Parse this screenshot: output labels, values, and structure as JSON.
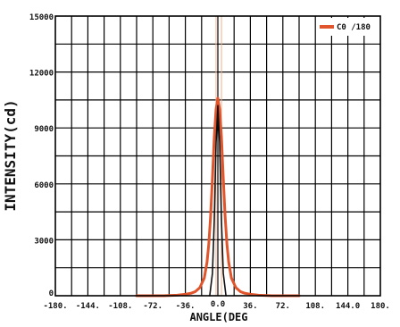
{
  "chart_data": {
    "type": "line",
    "xlabel": "ANGLE(DEG",
    "ylabel": "INTENSITY(cd)",
    "xlim": [
      -180,
      180
    ],
    "ylim": [
      0,
      15000
    ],
    "x_ticks": [
      {
        "value": -180,
        "label": "-180."
      },
      {
        "value": -144,
        "label": "-144."
      },
      {
        "value": -108,
        "label": "-108."
      },
      {
        "value": -72,
        "label": "-72."
      },
      {
        "value": -36,
        "label": "-36."
      },
      {
        "value": 0,
        "label": "0.0"
      },
      {
        "value": 36,
        "label": "36."
      },
      {
        "value": 72,
        "label": "72."
      },
      {
        "value": 108,
        "label": "108."
      },
      {
        "value": 144,
        "label": "144.0"
      },
      {
        "value": 180,
        "label": "180."
      }
    ],
    "y_ticks": [
      {
        "value": 0,
        "label": "0"
      },
      {
        "value": 3000,
        "label": "3000"
      },
      {
        "value": 6000,
        "label": "6000"
      },
      {
        "value": 9000,
        "label": "9000"
      },
      {
        "value": 12000,
        "label": "12000"
      },
      {
        "value": 15000,
        "label": "15000"
      }
    ],
    "grid": true,
    "legend_position": "top-right",
    "series": [
      {
        "name": "C0 /180",
        "color": "#e0552b",
        "x": [
          -90,
          -60,
          -45,
          -36,
          -30,
          -25,
          -20,
          -15,
          -12,
          -10,
          -8,
          -6,
          -4,
          -2,
          0,
          2,
          4,
          6,
          8,
          10,
          12,
          15,
          20,
          25,
          30,
          36,
          45,
          60,
          90
        ],
        "y": [
          0,
          0,
          30,
          80,
          130,
          220,
          430,
          950,
          1800,
          2800,
          4300,
          6300,
          8500,
          10000,
          10600,
          10000,
          8500,
          6300,
          4300,
          2800,
          1800,
          950,
          430,
          220,
          130,
          80,
          30,
          0,
          0
        ]
      },
      {
        "name": "",
        "color": "#111111",
        "x": [
          -9,
          -6,
          -4,
          -2,
          0,
          2,
          4,
          6,
          9
        ],
        "y": [
          0,
          1200,
          4000,
          8200,
          10200,
          8200,
          4000,
          1200,
          0
        ]
      }
    ],
    "reference_lines": [
      {
        "x": -2,
        "color": "#f0b090"
      },
      {
        "x": 4,
        "color": "#f0b090"
      }
    ]
  }
}
